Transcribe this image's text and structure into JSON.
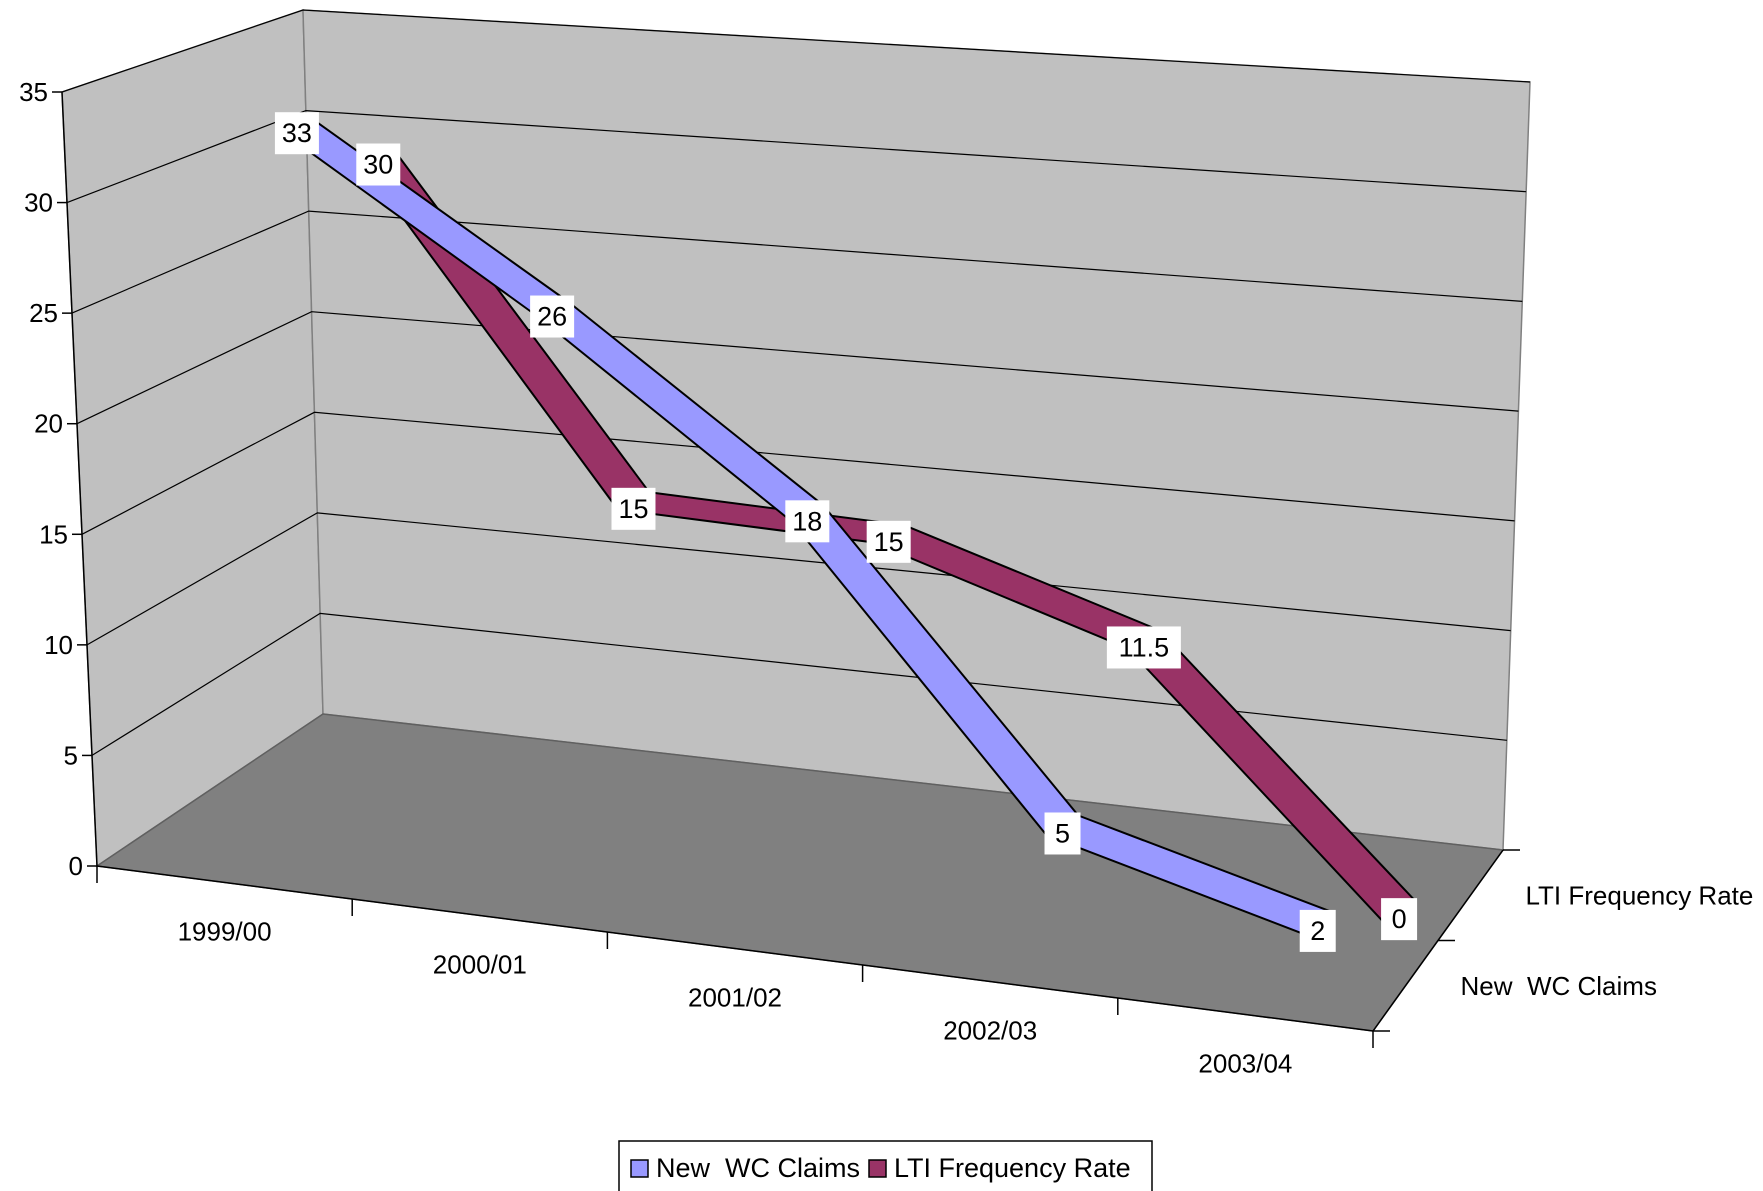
{
  "chart_data": {
    "type": "line",
    "style": "3d-ribbon",
    "title": "",
    "categories": [
      "1999/00",
      "2000/01",
      "2001/02",
      "2002/03",
      "2003/04"
    ],
    "series": [
      {
        "name": "New  WC Claims",
        "values": [
          33,
          26,
          18,
          5,
          2
        ],
        "color": "#9999FF"
      },
      {
        "name": "LTI Frequency Rate",
        "values": [
          30,
          15,
          15,
          11.5,
          0
        ],
        "color": "#993366"
      }
    ],
    "series_axis_labels": [
      "New  WC Claims",
      "LTI Frequency Rate"
    ],
    "y_ticks": [
      "0",
      "5",
      "10",
      "15",
      "20",
      "25",
      "30",
      "35"
    ],
    "ylim": [
      0,
      35
    ],
    "grid": true,
    "data_labels": true,
    "legend_position": "bottom",
    "colors": {
      "walls": "#C0C0C0",
      "floor": "#808080",
      "gridline": "#000000",
      "label_background": "#FFFFFF"
    }
  }
}
